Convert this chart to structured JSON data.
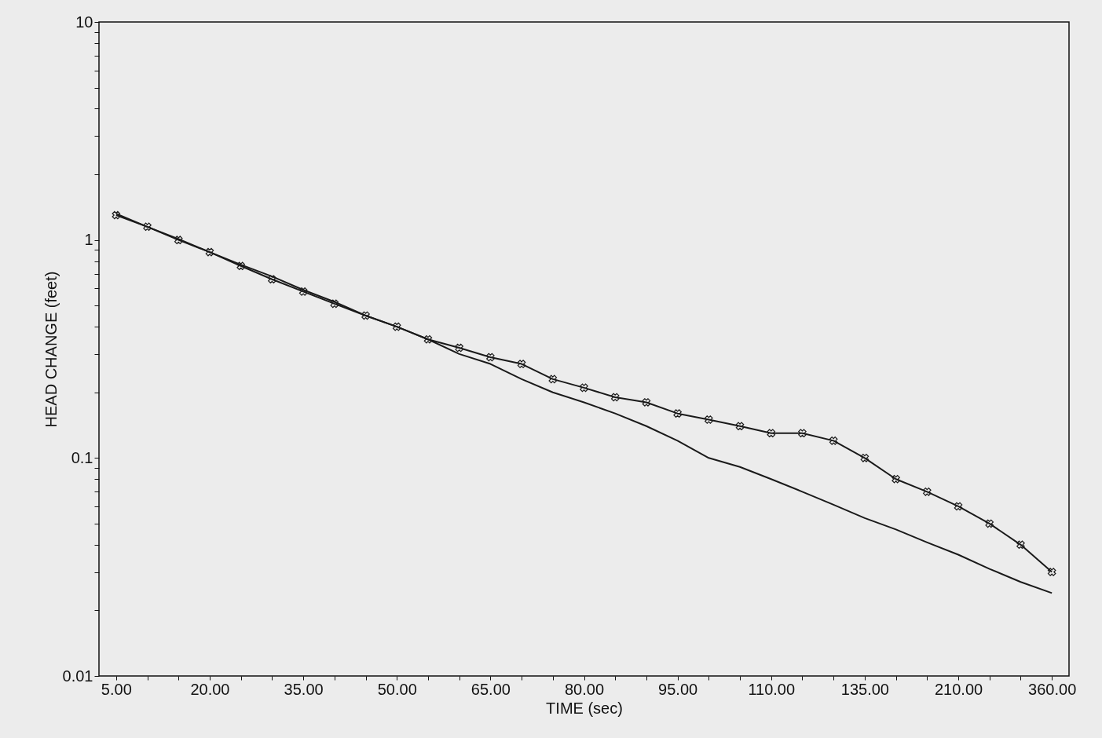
{
  "chart_data": {
    "type": "line",
    "xlabel": "TIME (sec)",
    "ylabel": "HEAD CHANGE (feet)",
    "categories": [
      "5.00",
      null,
      null,
      "20.00",
      null,
      null,
      "35.00",
      null,
      null,
      "50.00",
      null,
      null,
      "65.00",
      null,
      null,
      "80.00",
      null,
      null,
      "95.00",
      null,
      null,
      "110.00",
      null,
      null,
      "135.00",
      null,
      null,
      "210.00",
      null,
      null,
      "360.00"
    ],
    "series": [
      {
        "color": "#1a1a1a",
        "marker": "cross",
        "values": [
          1.3,
          1.15,
          1.0,
          0.88,
          0.76,
          0.66,
          0.58,
          0.51,
          0.45,
          0.4,
          0.35,
          0.32,
          0.29,
          0.27,
          0.23,
          0.21,
          0.19,
          0.18,
          0.16,
          0.15,
          0.14,
          0.13,
          0.13,
          0.12,
          0.1,
          0.08,
          0.07,
          0.06,
          0.05,
          0.04,
          0.03
        ]
      },
      {
        "color": "#1a1a1a",
        "marker": "none",
        "values": [
          1.32,
          1.15,
          1.01,
          0.88,
          0.77,
          0.68,
          0.59,
          0.52,
          0.45,
          0.4,
          0.35,
          0.3,
          0.27,
          0.23,
          0.2,
          0.18,
          0.16,
          0.14,
          0.12,
          0.1,
          0.091,
          0.08,
          0.07,
          0.061,
          0.053,
          0.047,
          0.041,
          0.036,
          0.031,
          0.027,
          0.024
        ]
      }
    ],
    "log": "y",
    "ylim": [
      0.01,
      10
    ],
    "yticks": [
      0.01,
      {
        "value": 0.02,
        "label": null
      },
      {
        "value": 0.03,
        "label": null
      },
      {
        "value": 0.04,
        "label": null
      },
      {
        "value": 0.05,
        "label": null
      },
      {
        "value": 0.06,
        "label": null
      },
      {
        "value": 0.07,
        "label": null
      },
      {
        "value": 0.08,
        "label": null
      },
      {
        "value": 0.09,
        "label": null
      },
      0.1,
      {
        "value": 0.2,
        "label": null
      },
      {
        "value": 0.3,
        "label": null
      },
      {
        "value": 0.4,
        "label": null
      },
      {
        "value": 0.5,
        "label": null
      },
      {
        "value": 0.6,
        "label": null
      },
      {
        "value": 0.7,
        "label": null
      },
      {
        "value": 0.8,
        "label": null
      },
      {
        "value": 0.9,
        "label": null
      },
      1,
      {
        "value": 2,
        "label": null
      },
      {
        "value": 3,
        "label": null
      },
      {
        "value": 4,
        "label": null
      },
      {
        "value": 5,
        "label": null
      },
      {
        "value": 6,
        "label": null
      },
      {
        "value": 7,
        "label": null
      },
      {
        "value": 8,
        "label": null
      },
      {
        "value": 9,
        "label": null
      },
      10
    ],
    "grid": false
  }
}
